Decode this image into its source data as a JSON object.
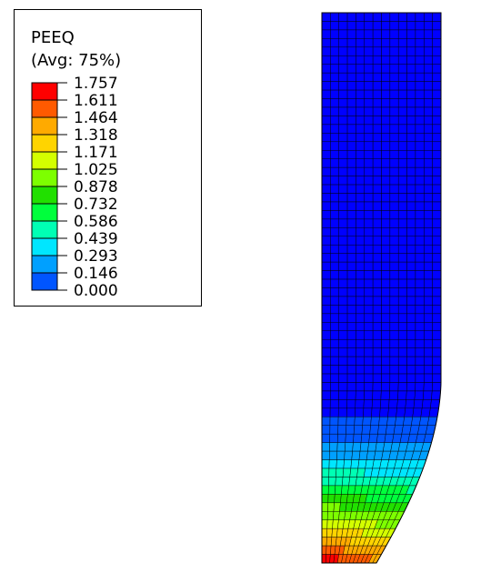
{
  "legend": {
    "title": "PEEQ",
    "subtitle": "(Avg: 75%)",
    "levels": [
      "1.757",
      "1.611",
      "1.464",
      "1.318",
      "1.171",
      "1.025",
      "0.878",
      "0.732",
      "0.586",
      "0.439",
      "0.293",
      "0.146",
      "0.000"
    ],
    "colors": [
      "#ff0000",
      "#ff5a00",
      "#ffaa00",
      "#ffd400",
      "#d4ff00",
      "#7dff00",
      "#21e000",
      "#00ff3c",
      "#00ffb4",
      "#00e6ff",
      "#00a0ff",
      "#0055ff",
      "#0000ff"
    ]
  },
  "contour": {
    "mesh_line_color": "#000000",
    "background": "#ffffff"
  }
}
